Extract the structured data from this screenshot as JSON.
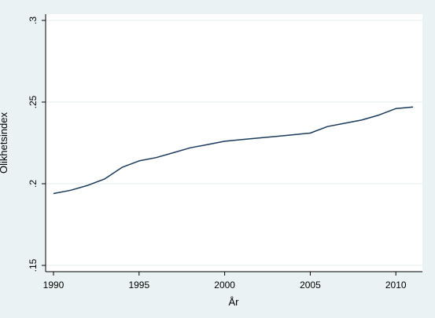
{
  "chart_data": {
    "type": "line",
    "title": "",
    "xlabel": "År",
    "ylabel": "Olikhetsindex",
    "xlim": [
      1990,
      2011
    ],
    "ylim": [
      0.15,
      0.3
    ],
    "x_ticks": [
      1990,
      1995,
      2000,
      2005,
      2010
    ],
    "x_tick_labels": [
      "1990",
      "1995",
      "2000",
      "2005",
      "2010"
    ],
    "y_ticks": [
      0.15,
      0.2,
      0.25,
      0.3
    ],
    "y_tick_labels": [
      ".15",
      ".2",
      ".25",
      ".3"
    ],
    "grid": "horizontal",
    "legend": "none",
    "line_color": "#1a3a5c",
    "series": [
      {
        "x": [
          1990,
          1991,
          1992,
          1993,
          1994,
          1995,
          1996,
          1997,
          1998,
          1999,
          2000,
          2001,
          2002,
          2003,
          2004,
          2005,
          2006,
          2007,
          2008,
          2009,
          2010,
          2011
        ],
        "values": [
          0.194,
          0.196,
          0.199,
          0.203,
          0.21,
          0.214,
          0.216,
          0.219,
          0.222,
          0.224,
          0.226,
          0.227,
          0.228,
          0.229,
          0.23,
          0.231,
          0.235,
          0.237,
          0.239,
          0.242,
          0.246,
          0.247
        ]
      }
    ]
  }
}
